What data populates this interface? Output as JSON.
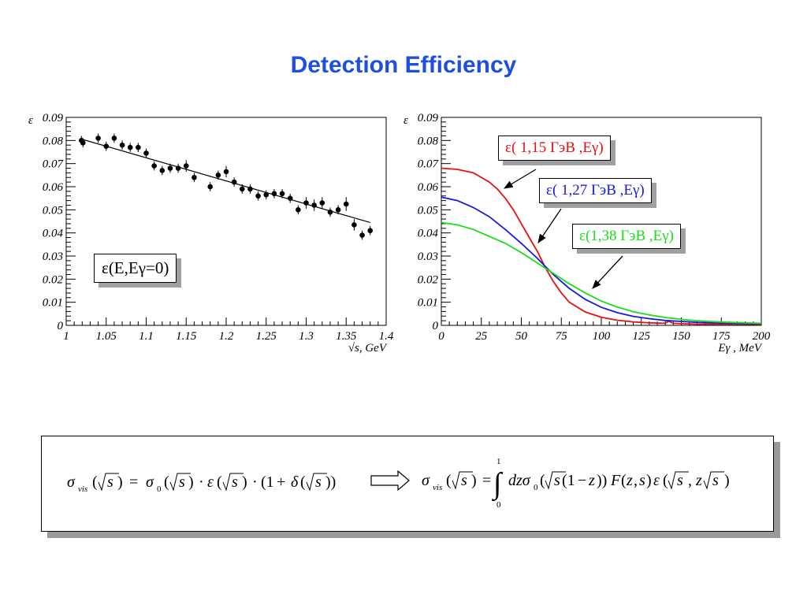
{
  "slide_title": "Detection Efficiency",
  "chart_data": [
    {
      "type": "scatter",
      "ylabel": "ε",
      "xlabel": "√s,  GeV",
      "xlim": [
        1,
        1.4
      ],
      "ylim": [
        0,
        0.09
      ],
      "xticks": [
        "1",
        "1.05",
        "1.1",
        "1.15",
        "1.2",
        "1.25",
        "1.3",
        "1.35",
        "1.4"
      ],
      "yticks": [
        "0",
        "0.01",
        "0.02",
        "0.03",
        "0.04",
        "0.05",
        "0.06",
        "0.07",
        "0.08",
        "0.09"
      ],
      "legend": "ε(E,Eγ=0)",
      "points": [
        {
          "x": 1.019,
          "y": 0.08,
          "err": 0.002
        },
        {
          "x": 1.021,
          "y": 0.079,
          "err": 0.002
        },
        {
          "x": 1.04,
          "y": 0.081,
          "err": 0.002
        },
        {
          "x": 1.05,
          "y": 0.0775,
          "err": 0.002
        },
        {
          "x": 1.06,
          "y": 0.081,
          "err": 0.002
        },
        {
          "x": 1.07,
          "y": 0.078,
          "err": 0.002
        },
        {
          "x": 1.08,
          "y": 0.077,
          "err": 0.002
        },
        {
          "x": 1.09,
          "y": 0.077,
          "err": 0.002
        },
        {
          "x": 1.1,
          "y": 0.0745,
          "err": 0.002
        },
        {
          "x": 1.11,
          "y": 0.069,
          "err": 0.002
        },
        {
          "x": 1.12,
          "y": 0.067,
          "err": 0.002
        },
        {
          "x": 1.13,
          "y": 0.068,
          "err": 0.002
        },
        {
          "x": 1.14,
          "y": 0.068,
          "err": 0.002
        },
        {
          "x": 1.15,
          "y": 0.069,
          "err": 0.0025
        },
        {
          "x": 1.16,
          "y": 0.064,
          "err": 0.002
        },
        {
          "x": 1.18,
          "y": 0.06,
          "err": 0.002
        },
        {
          "x": 1.19,
          "y": 0.065,
          "err": 0.002
        },
        {
          "x": 1.2,
          "y": 0.0665,
          "err": 0.0025
        },
        {
          "x": 1.21,
          "y": 0.062,
          "err": 0.002
        },
        {
          "x": 1.22,
          "y": 0.059,
          "err": 0.002
        },
        {
          "x": 1.23,
          "y": 0.059,
          "err": 0.002
        },
        {
          "x": 1.24,
          "y": 0.056,
          "err": 0.002
        },
        {
          "x": 1.25,
          "y": 0.0565,
          "err": 0.002
        },
        {
          "x": 1.26,
          "y": 0.057,
          "err": 0.002
        },
        {
          "x": 1.27,
          "y": 0.057,
          "err": 0.002
        },
        {
          "x": 1.28,
          "y": 0.055,
          "err": 0.002
        },
        {
          "x": 1.29,
          "y": 0.05,
          "err": 0.002
        },
        {
          "x": 1.3,
          "y": 0.053,
          "err": 0.0025
        },
        {
          "x": 1.31,
          "y": 0.052,
          "err": 0.0025
        },
        {
          "x": 1.32,
          "y": 0.053,
          "err": 0.0025
        },
        {
          "x": 1.33,
          "y": 0.049,
          "err": 0.002
        },
        {
          "x": 1.34,
          "y": 0.05,
          "err": 0.002
        },
        {
          "x": 1.35,
          "y": 0.0525,
          "err": 0.003
        },
        {
          "x": 1.36,
          "y": 0.0435,
          "err": 0.0025
        },
        {
          "x": 1.37,
          "y": 0.039,
          "err": 0.002
        },
        {
          "x": 1.38,
          "y": 0.041,
          "err": 0.002
        }
      ],
      "fit_line": {
        "x": [
          1.02,
          1.38
        ],
        "y": [
          0.0805,
          0.0445
        ]
      }
    },
    {
      "type": "line",
      "ylabel": "ε",
      "xlabel": "Eγ ,  MeV",
      "xlim": [
        0,
        200
      ],
      "ylim": [
        0,
        0.09
      ],
      "xticks": [
        "0",
        "25",
        "50",
        "75",
        "100",
        "125",
        "150",
        "175",
        "200"
      ],
      "yticks": [
        "0",
        "0.01",
        "0.02",
        "0.03",
        "0.04",
        "0.05",
        "0.06",
        "0.07",
        "0.08",
        "0.09"
      ],
      "series": [
        {
          "name": "ε( 1,15 ГэВ ,Eγ)",
          "color": "#e81010",
          "x": [
            0,
            10,
            20,
            30,
            35,
            40,
            45,
            50,
            55,
            60,
            65,
            70,
            75,
            80,
            90,
            100,
            110,
            120,
            130,
            140,
            142,
            145,
            150,
            160,
            170,
            180,
            190,
            200
          ],
          "y": [
            0.068,
            0.0675,
            0.066,
            0.062,
            0.059,
            0.055,
            0.05,
            0.044,
            0.038,
            0.032,
            0.025,
            0.019,
            0.014,
            0.01,
            0.0058,
            0.0035,
            0.0022,
            0.0015,
            0.0011,
            0.0009,
            0.0018,
            0.0009,
            0.0007,
            0.0005,
            0.0005,
            0.0005,
            0.0005,
            0.0004
          ]
        },
        {
          "name": "ε( 1,27 ГэВ ,Eγ)",
          "color": "#1818e0",
          "x": [
            0,
            10,
            20,
            30,
            40,
            50,
            60,
            70,
            80,
            90,
            100,
            110,
            120,
            130,
            140,
            150,
            160,
            170,
            180,
            190,
            200
          ],
          "y": [
            0.0555,
            0.054,
            0.051,
            0.047,
            0.0415,
            0.0355,
            0.029,
            0.022,
            0.016,
            0.0112,
            0.0078,
            0.0055,
            0.0039,
            0.0029,
            0.0021,
            0.0017,
            0.0013,
            0.0011,
            0.0009,
            0.0008,
            0.0007
          ]
        },
        {
          "name": "ε(1,38 ГэВ ,Eγ)",
          "color": "#18e018",
          "x": [
            0,
            10,
            20,
            30,
            40,
            50,
            60,
            70,
            80,
            90,
            100,
            110,
            120,
            130,
            140,
            150,
            160,
            170,
            180,
            190,
            200
          ],
          "y": [
            0.0445,
            0.0435,
            0.0415,
            0.0385,
            0.0355,
            0.0315,
            0.027,
            0.0225,
            0.018,
            0.014,
            0.0105,
            0.0079,
            0.0059,
            0.0045,
            0.0034,
            0.0026,
            0.002,
            0.0016,
            0.0013,
            0.0011,
            0.0009
          ]
        }
      ]
    }
  ]
}
